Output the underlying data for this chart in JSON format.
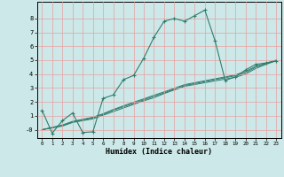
{
  "xlabel": "Humidex (Indice chaleur)",
  "bg_color": "#cde8e8",
  "grid_color": "#e8a0a0",
  "line_color": "#2e7d6e",
  "xlim": [
    -0.5,
    23.5
  ],
  "ylim": [
    -0.6,
    9.2
  ],
  "xtick_vals": [
    0,
    1,
    2,
    3,
    4,
    5,
    6,
    7,
    8,
    9,
    10,
    11,
    12,
    13,
    14,
    15,
    16,
    17,
    18,
    19,
    20,
    21,
    22,
    23
  ],
  "xtick_labels": [
    "0",
    "1",
    "2",
    "3",
    "4",
    "5",
    "6",
    "7",
    "8",
    "9",
    "10",
    "11",
    "12",
    "13",
    "14",
    "15",
    "16",
    "17",
    "18",
    "19",
    "20",
    "21",
    "22",
    "23"
  ],
  "ytick_vals": [
    0,
    1,
    2,
    3,
    4,
    5,
    6,
    7,
    8
  ],
  "ytick_labels": [
    "-0",
    "1",
    "2",
    "3",
    "4",
    "5",
    "6",
    "7",
    "8"
  ],
  "curve1_x": [
    0,
    1,
    2,
    3,
    4,
    5,
    6,
    7,
    8,
    9,
    10,
    11,
    12,
    13,
    14,
    15,
    16,
    17,
    18,
    19,
    20,
    21,
    22,
    23
  ],
  "curve1_y": [
    1.4,
    -0.25,
    0.65,
    1.2,
    -0.2,
    -0.15,
    2.25,
    2.5,
    3.6,
    3.9,
    5.15,
    6.65,
    7.8,
    8.0,
    7.8,
    8.2,
    8.6,
    6.4,
    3.55,
    3.8,
    4.3,
    4.7,
    4.8,
    4.95
  ],
  "curve2_x": [
    0,
    1,
    2,
    3,
    4,
    5,
    6,
    7,
    8,
    9,
    10,
    11,
    12,
    13,
    14,
    15,
    16,
    17,
    18,
    19,
    20,
    21,
    22,
    23
  ],
  "curve2_y": [
    0.0,
    0.13,
    0.26,
    0.52,
    0.65,
    0.78,
    1.04,
    1.3,
    1.56,
    1.82,
    2.08,
    2.3,
    2.6,
    2.86,
    3.12,
    3.25,
    3.38,
    3.51,
    3.64,
    3.77,
    4.0,
    4.4,
    4.7,
    4.95
  ],
  "curve3_x": [
    0,
    1,
    2,
    3,
    4,
    5,
    6,
    7,
    8,
    9,
    10,
    11,
    12,
    13,
    14,
    15,
    16,
    17,
    18,
    19,
    20,
    21,
    22,
    23
  ],
  "curve3_y": [
    0.0,
    0.15,
    0.3,
    0.55,
    0.7,
    0.85,
    1.1,
    1.4,
    1.65,
    1.9,
    2.15,
    2.4,
    2.65,
    2.92,
    3.18,
    3.32,
    3.46,
    3.6,
    3.74,
    3.88,
    4.1,
    4.5,
    4.75,
    4.97
  ],
  "curve4_x": [
    0,
    1,
    2,
    3,
    4,
    5,
    6,
    7,
    8,
    9,
    10,
    11,
    12,
    13,
    14,
    15,
    16,
    17,
    18,
    19,
    20,
    21,
    22,
    23
  ],
  "curve4_y": [
    0.0,
    0.17,
    0.34,
    0.6,
    0.75,
    0.9,
    1.15,
    1.45,
    1.72,
    1.98,
    2.22,
    2.48,
    2.72,
    2.98,
    3.24,
    3.38,
    3.52,
    3.66,
    3.8,
    3.94,
    4.2,
    4.55,
    4.78,
    5.0
  ]
}
